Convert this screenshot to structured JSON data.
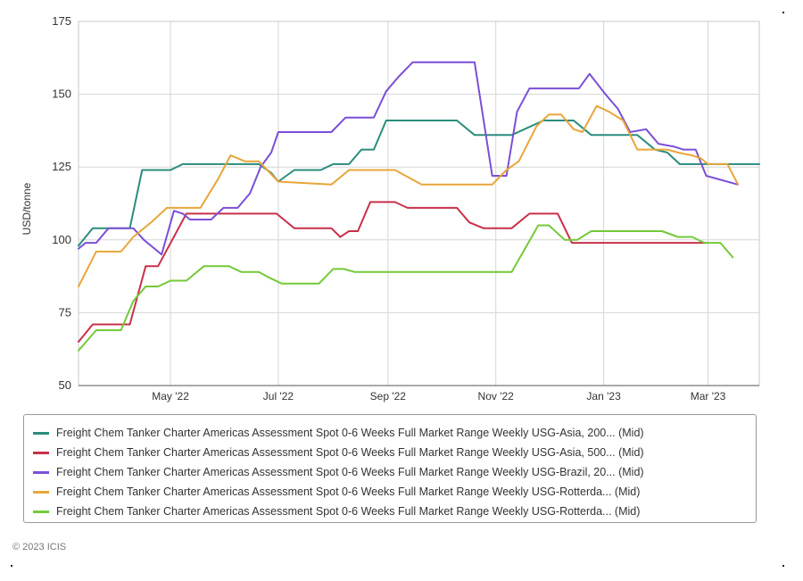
{
  "chart_data": {
    "type": "line",
    "ylabel": "USD/tonne",
    "ylim": [
      50,
      175
    ],
    "yticks": [
      50,
      75,
      100,
      125,
      150,
      175
    ],
    "x_start": "2022-03-10",
    "x_end": "2023-03-30",
    "xticks": [
      {
        "date": "2022-05-01",
        "label": "May '22"
      },
      {
        "date": "2022-07-01",
        "label": "Jul '22"
      },
      {
        "date": "2022-09-01",
        "label": "Sep '22"
      },
      {
        "date": "2022-11-01",
        "label": "Nov '22"
      },
      {
        "date": "2023-01-01",
        "label": "Jan '23"
      },
      {
        "date": "2023-03-01",
        "label": "Mar '23"
      }
    ],
    "grid": true,
    "legend_position": "bottom",
    "series": [
      {
        "name": "Freight Chem Tanker Charter Americas Assessment Spot 0-6 Weeks Full Market Range Weekly USG-Asia, 200... (Mid)",
        "color": "#2a8c7c",
        "points": [
          [
            "2022-03-10",
            98
          ],
          [
            "2022-03-18",
            104
          ],
          [
            "2022-04-01",
            104
          ],
          [
            "2022-04-08",
            104
          ],
          [
            "2022-04-15",
            124
          ],
          [
            "2022-05-01",
            124
          ],
          [
            "2022-05-08",
            126
          ],
          [
            "2022-06-20",
            126
          ],
          [
            "2022-06-27",
            123
          ],
          [
            "2022-07-01",
            120
          ],
          [
            "2022-07-10",
            124
          ],
          [
            "2022-07-25",
            124
          ],
          [
            "2022-08-01",
            126
          ],
          [
            "2022-08-10",
            126
          ],
          [
            "2022-08-17",
            131
          ],
          [
            "2022-08-24",
            131
          ],
          [
            "2022-08-31",
            141
          ],
          [
            "2022-10-10",
            141
          ],
          [
            "2022-10-20",
            136
          ],
          [
            "2022-11-10",
            136
          ],
          [
            "2022-11-28",
            141
          ],
          [
            "2022-12-15",
            141
          ],
          [
            "2022-12-25",
            136
          ],
          [
            "2023-01-20",
            136
          ],
          [
            "2023-01-30",
            131
          ],
          [
            "2023-02-06",
            130
          ],
          [
            "2023-02-13",
            126
          ],
          [
            "2023-02-28",
            126
          ],
          [
            "2023-03-30",
            126
          ]
        ]
      },
      {
        "name": "Freight Chem Tanker Charter Americas Assessment Spot 0-6 Weeks Full Market Range Weekly USG-Asia, 500... (Mid)",
        "color": "#c8304a",
        "points": [
          [
            "2022-03-10",
            65
          ],
          [
            "2022-03-18",
            71
          ],
          [
            "2022-04-08",
            71
          ],
          [
            "2022-04-17",
            91
          ],
          [
            "2022-04-24",
            91
          ],
          [
            "2022-05-10",
            109
          ],
          [
            "2022-06-30",
            109
          ],
          [
            "2022-07-10",
            104
          ],
          [
            "2022-07-31",
            104
          ],
          [
            "2022-08-05",
            101
          ],
          [
            "2022-08-10",
            103
          ],
          [
            "2022-08-15",
            103
          ],
          [
            "2022-08-22",
            113
          ],
          [
            "2022-09-05",
            113
          ],
          [
            "2022-09-12",
            111
          ],
          [
            "2022-10-10",
            111
          ],
          [
            "2022-10-17",
            106
          ],
          [
            "2022-10-25",
            104
          ],
          [
            "2022-11-10",
            104
          ],
          [
            "2022-11-20",
            109
          ],
          [
            "2022-12-06",
            109
          ],
          [
            "2022-12-14",
            99
          ],
          [
            "2023-02-22",
            99
          ],
          [
            "2023-03-01",
            99
          ]
        ]
      },
      {
        "name": "Freight Chem Tanker Charter Americas Assessment Spot 0-6 Weeks Full Market Range Weekly USG-Brazil, 20... (Mid)",
        "color": "#7b4fd6",
        "points": [
          [
            "2022-03-10",
            97
          ],
          [
            "2022-03-14",
            99
          ],
          [
            "2022-03-20",
            99
          ],
          [
            "2022-03-27",
            104
          ],
          [
            "2022-04-10",
            104
          ],
          [
            "2022-04-16",
            100
          ],
          [
            "2022-04-26",
            95
          ],
          [
            "2022-05-03",
            110
          ],
          [
            "2022-05-08",
            109
          ],
          [
            "2022-05-12",
            107
          ],
          [
            "2022-05-24",
            107
          ],
          [
            "2022-05-31",
            111
          ],
          [
            "2022-06-08",
            111
          ],
          [
            "2022-06-15",
            116
          ],
          [
            "2022-06-21",
            125
          ],
          [
            "2022-06-27",
            130
          ],
          [
            "2022-07-01",
            137
          ],
          [
            "2022-07-31",
            137
          ],
          [
            "2022-08-08",
            142
          ],
          [
            "2022-08-24",
            142
          ],
          [
            "2022-08-31",
            151
          ],
          [
            "2022-09-07",
            156
          ],
          [
            "2022-09-15",
            161
          ],
          [
            "2022-10-20",
            161
          ],
          [
            "2022-10-30",
            122
          ],
          [
            "2022-11-07",
            122
          ],
          [
            "2022-11-13",
            144
          ],
          [
            "2022-11-20",
            152
          ],
          [
            "2022-12-18",
            152
          ],
          [
            "2022-12-24",
            157
          ],
          [
            "2023-01-02",
            150
          ],
          [
            "2023-01-09",
            145
          ],
          [
            "2023-01-16",
            137
          ],
          [
            "2023-01-25",
            138
          ],
          [
            "2023-02-01",
            133
          ],
          [
            "2023-02-10",
            132
          ],
          [
            "2023-02-15",
            131
          ],
          [
            "2023-02-22",
            131
          ],
          [
            "2023-02-28",
            122
          ],
          [
            "2023-03-18",
            119
          ]
        ]
      },
      {
        "name": "Freight Chem Tanker Charter Americas Assessment Spot 0-6 Weeks Full Market Range Weekly USG-Rotterda... (Mid)",
        "color": "#e8a63a",
        "points": [
          [
            "2022-03-10",
            84
          ],
          [
            "2022-03-20",
            96
          ],
          [
            "2022-03-27",
            96
          ],
          [
            "2022-04-03",
            96
          ],
          [
            "2022-04-10",
            101
          ],
          [
            "2022-04-20",
            106
          ],
          [
            "2022-04-29",
            111
          ],
          [
            "2022-05-18",
            111
          ],
          [
            "2022-05-28",
            121
          ],
          [
            "2022-06-04",
            129
          ],
          [
            "2022-06-12",
            127
          ],
          [
            "2022-06-20",
            127
          ],
          [
            "2022-07-01",
            120
          ],
          [
            "2022-07-31",
            119
          ],
          [
            "2022-08-10",
            124
          ],
          [
            "2022-09-05",
            124
          ],
          [
            "2022-09-20",
            119
          ],
          [
            "2022-10-30",
            119
          ],
          [
            "2022-11-07",
            124
          ],
          [
            "2022-11-14",
            127
          ],
          [
            "2022-11-24",
            139
          ],
          [
            "2022-12-01",
            143
          ],
          [
            "2022-12-08",
            143
          ],
          [
            "2022-12-15",
            138
          ],
          [
            "2022-12-20",
            137
          ],
          [
            "2022-12-28",
            146
          ],
          [
            "2023-01-04",
            144
          ],
          [
            "2023-01-12",
            141
          ],
          [
            "2023-01-20",
            131
          ],
          [
            "2023-02-06",
            131
          ],
          [
            "2023-02-12",
            130
          ],
          [
            "2023-02-20",
            129
          ],
          [
            "2023-02-25",
            128
          ],
          [
            "2023-03-01",
            126
          ],
          [
            "2023-03-12",
            126
          ],
          [
            "2023-03-18",
            119
          ]
        ]
      },
      {
        "name": "Freight Chem Tanker Charter Americas Assessment Spot 0-6 Weeks Full Market Range Weekly USG-Rotterda... (Mid)",
        "color": "#74c93a",
        "points": [
          [
            "2022-03-10",
            62
          ],
          [
            "2022-03-20",
            69
          ],
          [
            "2022-04-03",
            69
          ],
          [
            "2022-04-10",
            79
          ],
          [
            "2022-04-17",
            84
          ],
          [
            "2022-04-24",
            84
          ],
          [
            "2022-05-01",
            86
          ],
          [
            "2022-05-10",
            86
          ],
          [
            "2022-05-20",
            91
          ],
          [
            "2022-06-03",
            91
          ],
          [
            "2022-06-10",
            89
          ],
          [
            "2022-06-20",
            89
          ],
          [
            "2022-06-26",
            87
          ],
          [
            "2022-07-03",
            85
          ],
          [
            "2022-07-24",
            85
          ],
          [
            "2022-08-01",
            90
          ],
          [
            "2022-08-07",
            90
          ],
          [
            "2022-08-13",
            89
          ],
          [
            "2022-11-10",
            89
          ],
          [
            "2022-11-25",
            105
          ],
          [
            "2022-12-01",
            105
          ],
          [
            "2022-12-10",
            100
          ],
          [
            "2022-12-17",
            100
          ],
          [
            "2022-12-25",
            103
          ],
          [
            "2023-01-15",
            103
          ],
          [
            "2023-02-03",
            103
          ],
          [
            "2023-02-12",
            101
          ],
          [
            "2023-02-20",
            101
          ],
          [
            "2023-02-27",
            99
          ],
          [
            "2023-03-08",
            99
          ],
          [
            "2023-03-15",
            94
          ]
        ]
      }
    ]
  },
  "copyright": "© 2023 ICIS"
}
